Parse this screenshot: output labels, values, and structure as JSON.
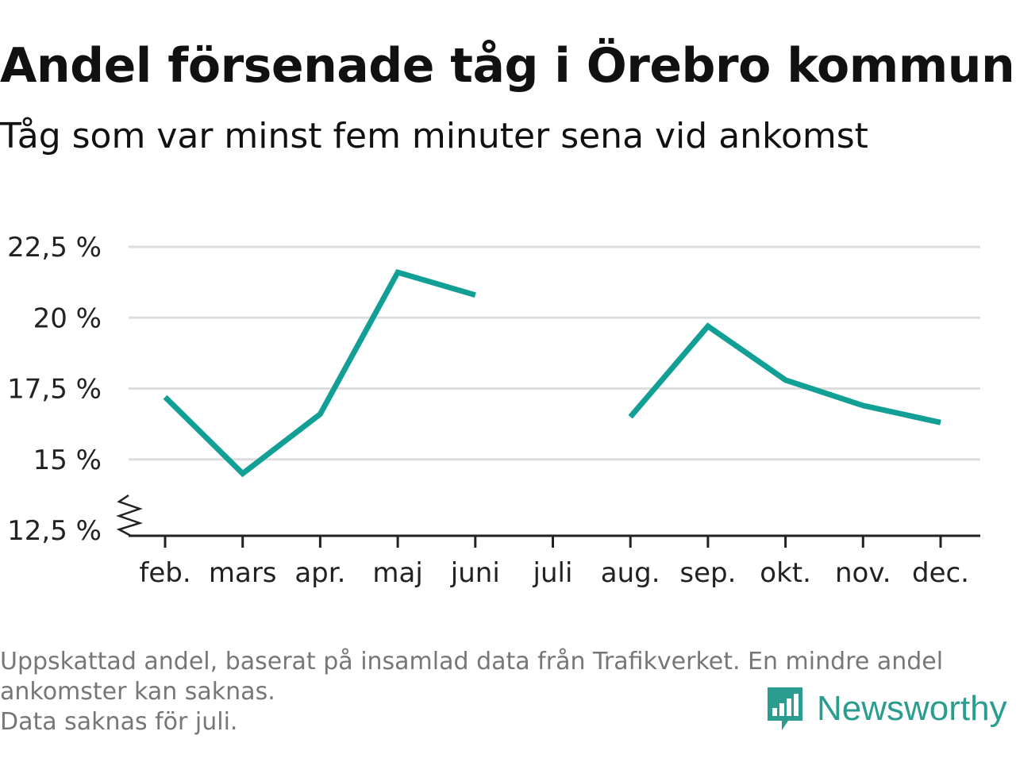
{
  "header": {
    "title": "Andel försenade tåg i Örebro kommun",
    "subtitle": "Tåg som var minst fem minuter sena vid ankomst"
  },
  "footnote": {
    "line1": "Uppskattad andel, baserat på insamlad data från Trafikverket. En mindre andel",
    "line2": "ankomster kan saknas.",
    "line3": "Data saknas för juli."
  },
  "brand": {
    "name": "Newsworthy",
    "icon": "newsworthy-logo-icon",
    "color": "#2a9d8f"
  },
  "chart_data": {
    "type": "line",
    "title": "Andel försenade tåg i Örebro kommun",
    "subtitle": "Tåg som var minst fem minuter sena vid ankomst",
    "xlabel": "",
    "ylabel": "",
    "categories": [
      "feb.",
      "mars",
      "apr.",
      "maj",
      "juni",
      "juli",
      "aug.",
      "sep.",
      "okt.",
      "nov.",
      "dec."
    ],
    "series": [
      {
        "values": [
          17.2,
          14.5,
          16.6,
          21.6,
          20.8,
          null,
          16.5,
          19.7,
          17.8,
          16.9,
          16.3
        ],
        "color": "#12a096"
      }
    ],
    "y_ticks": [
      12.5,
      15,
      17.5,
      20,
      22.5
    ],
    "y_tick_labels": [
      "12,5 %",
      "15 %",
      "17,5 %",
      "20 %",
      "22,5 %"
    ],
    "ylim": [
      12.5,
      22.5
    ],
    "axis_break": true,
    "grid": true,
    "legend": "none"
  }
}
